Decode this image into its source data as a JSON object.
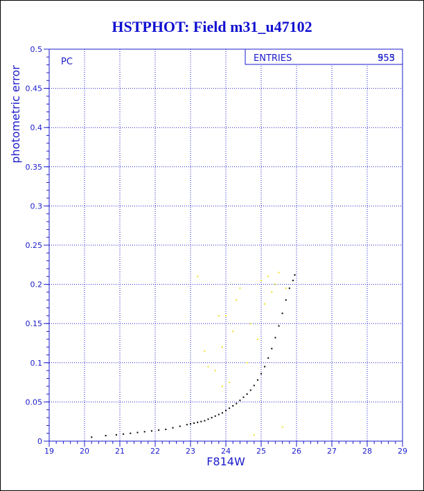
{
  "chart_data": {
    "type": "scatter",
    "title": "HSTPHOT: Field m31_u47102",
    "xlabel": "F814W",
    "ylabel": "photometric error",
    "xlim": [
      19,
      29
    ],
    "ylim": [
      0,
      0.5
    ],
    "xticks": [
      "19",
      "20",
      "21",
      "22",
      "23",
      "24",
      "25",
      "26",
      "27",
      "28",
      "29"
    ],
    "yticks": [
      "0",
      "0.05",
      "0.1",
      "0.15",
      "0.2",
      "0.25",
      "0.3",
      "0.35",
      "0.4",
      "0.45",
      "0.5"
    ],
    "grid": true,
    "panel_label": "PC",
    "stats": {
      "label": "ENTRIES",
      "values": [
        "955",
        "553"
      ]
    },
    "colors": {
      "axis": "#1a1acc",
      "grid": "#1a1acc",
      "black_points": "#000000",
      "yellow_points": "#f0e020"
    },
    "series": [
      {
        "color": "black",
        "points": [
          [
            20.2,
            0.005
          ],
          [
            20.6,
            0.007
          ],
          [
            20.9,
            0.008
          ],
          [
            21.1,
            0.009
          ],
          [
            21.3,
            0.01
          ],
          [
            21.5,
            0.011
          ],
          [
            21.7,
            0.012
          ],
          [
            21.9,
            0.013
          ],
          [
            22.1,
            0.014
          ],
          [
            22.3,
            0.015
          ],
          [
            22.5,
            0.017
          ],
          [
            22.7,
            0.019
          ],
          [
            22.9,
            0.021
          ],
          [
            23.0,
            0.022
          ],
          [
            23.1,
            0.023
          ],
          [
            23.2,
            0.024
          ],
          [
            23.3,
            0.025
          ],
          [
            23.4,
            0.026
          ],
          [
            23.5,
            0.028
          ],
          [
            23.6,
            0.03
          ],
          [
            23.7,
            0.032
          ],
          [
            23.8,
            0.034
          ],
          [
            23.9,
            0.036
          ],
          [
            24.0,
            0.039
          ],
          [
            24.1,
            0.042
          ],
          [
            24.2,
            0.045
          ],
          [
            24.3,
            0.048
          ],
          [
            24.4,
            0.052
          ],
          [
            24.5,
            0.056
          ],
          [
            24.6,
            0.06
          ],
          [
            24.7,
            0.065
          ],
          [
            24.8,
            0.071
          ],
          [
            24.9,
            0.078
          ],
          [
            25.0,
            0.086
          ],
          [
            25.1,
            0.095
          ],
          [
            25.2,
            0.106
          ],
          [
            25.3,
            0.118
          ],
          [
            25.4,
            0.132
          ],
          [
            25.5,
            0.147
          ],
          [
            25.6,
            0.163
          ],
          [
            25.7,
            0.18
          ],
          [
            25.8,
            0.195
          ],
          [
            25.9,
            0.205
          ],
          [
            25.95,
            0.212
          ]
        ]
      },
      {
        "color": "yellow",
        "points": [
          [
            23.4,
            0.115
          ],
          [
            23.5,
            0.095
          ],
          [
            23.7,
            0.09
          ],
          [
            23.8,
            0.16
          ],
          [
            23.9,
            0.12
          ],
          [
            24.0,
            0.16
          ],
          [
            24.1,
            0.075
          ],
          [
            24.2,
            0.14
          ],
          [
            24.3,
            0.18
          ],
          [
            24.4,
            0.195
          ],
          [
            24.6,
            0.1
          ],
          [
            24.7,
            0.15
          ],
          [
            24.8,
            0.008
          ],
          [
            24.9,
            0.13
          ],
          [
            25.0,
            0.205
          ],
          [
            25.1,
            0.175
          ],
          [
            25.2,
            0.21
          ],
          [
            25.3,
            0.19
          ],
          [
            25.4,
            0.2
          ],
          [
            25.5,
            0.215
          ],
          [
            25.6,
            0.018
          ],
          [
            25.7,
            0.195
          ],
          [
            23.2,
            0.21
          ],
          [
            23.9,
            0.07
          ]
        ]
      }
    ]
  }
}
